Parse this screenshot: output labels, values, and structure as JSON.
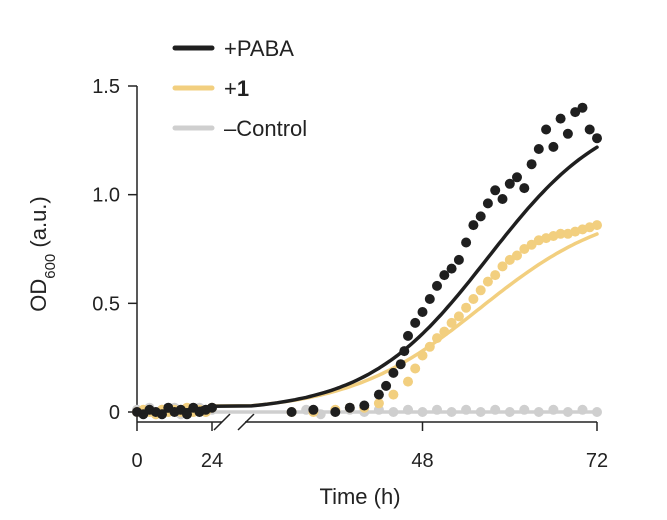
{
  "chart_data": {
    "type": "scatter",
    "xlabel": "Time (h)",
    "ylabel_main": "OD",
    "ylabel_sub": "600",
    "ylabel_tail": " (a.u.)",
    "xticks": [
      "0",
      "24",
      "48",
      "72"
    ],
    "yticks": [
      "0",
      "0.5",
      "1.0",
      "1.5"
    ],
    "xlim": [
      0,
      72
    ],
    "ylim": [
      0,
      1.5
    ],
    "x_axis_break": true,
    "grid": false,
    "legend_position": "top-left",
    "legend": [
      {
        "label_prefix": "+",
        "label_main": "PABA",
        "bold": false
      },
      {
        "label_prefix": "+",
        "label_main": "1",
        "bold": true
      },
      {
        "label_prefix": "",
        "label_main": "–Control",
        "bold": false
      }
    ],
    "colors": {
      "paba": "#1f1f1f",
      "compound1": "#f2cf7f",
      "control": "#cfcfcf"
    },
    "series": [
      {
        "name": "+PABA",
        "color": "#1f1f1f",
        "fit": {
          "model": "logistic",
          "K": 1.42,
          "r": 0.12,
          "t0": 57
        },
        "points": [
          [
            0,
            0.0
          ],
          [
            2,
            -0.01
          ],
          [
            4,
            0.01
          ],
          [
            6,
            0.0
          ],
          [
            8,
            -0.01
          ],
          [
            10,
            0.02
          ],
          [
            12,
            0.0
          ],
          [
            14,
            0.01
          ],
          [
            16,
            -0.01
          ],
          [
            18,
            0.02
          ],
          [
            20,
            0.0
          ],
          [
            22,
            0.01
          ],
          [
            24,
            0.02
          ],
          [
            30,
            0.0
          ],
          [
            33,
            0.01
          ],
          [
            36,
            0.0
          ],
          [
            38,
            0.02
          ],
          [
            40,
            0.03
          ],
          [
            42,
            0.08
          ],
          [
            43,
            0.12
          ],
          [
            44,
            0.18
          ],
          [
            45,
            0.22
          ],
          [
            45.5,
            0.28
          ],
          [
            46,
            0.35
          ],
          [
            47,
            0.41
          ],
          [
            48,
            0.46
          ],
          [
            49,
            0.52
          ],
          [
            50,
            0.58
          ],
          [
            51,
            0.63
          ],
          [
            52,
            0.66
          ],
          [
            53,
            0.7
          ],
          [
            54,
            0.78
          ],
          [
            55,
            0.86
          ],
          [
            56,
            0.9
          ],
          [
            57,
            0.96
          ],
          [
            58,
            1.02
          ],
          [
            59,
            0.98
          ],
          [
            60,
            1.05
          ],
          [
            61,
            1.08
          ],
          [
            62,
            1.03
          ],
          [
            63,
            1.14
          ],
          [
            64,
            1.21
          ],
          [
            65,
            1.3
          ],
          [
            66,
            1.22
          ],
          [
            67,
            1.35
          ],
          [
            68,
            1.28
          ],
          [
            69,
            1.38
          ],
          [
            70,
            1.4
          ],
          [
            71,
            1.3
          ],
          [
            72,
            1.26
          ]
        ]
      },
      {
        "name": "+1",
        "color": "#f2cf7f",
        "fit": {
          "model": "logistic",
          "K": 0.96,
          "r": 0.11,
          "t0": 56
        },
        "points": [
          [
            0,
            0.0
          ],
          [
            2,
            0.01
          ],
          [
            4,
            0.0
          ],
          [
            6,
            -0.01
          ],
          [
            8,
            0.01
          ],
          [
            10,
            0.0
          ],
          [
            12,
            0.01
          ],
          [
            14,
            0.0
          ],
          [
            16,
            0.02
          ],
          [
            18,
            0.0
          ],
          [
            20,
            0.01
          ],
          [
            22,
            0.0
          ],
          [
            24,
            0.02
          ],
          [
            30,
            0.0
          ],
          [
            33,
            0.0
          ],
          [
            36,
            0.01
          ],
          [
            38,
            0.02
          ],
          [
            40,
            0.02
          ],
          [
            42,
            0.04
          ],
          [
            44,
            0.08
          ],
          [
            46,
            0.14
          ],
          [
            47,
            0.2
          ],
          [
            48,
            0.26
          ],
          [
            49,
            0.3
          ],
          [
            50,
            0.34
          ],
          [
            51,
            0.37
          ],
          [
            52,
            0.41
          ],
          [
            53,
            0.44
          ],
          [
            54,
            0.48
          ],
          [
            55,
            0.52
          ],
          [
            56,
            0.56
          ],
          [
            57,
            0.6
          ],
          [
            58,
            0.63
          ],
          [
            59,
            0.67
          ],
          [
            60,
            0.7
          ],
          [
            61,
            0.72
          ],
          [
            62,
            0.75
          ],
          [
            63,
            0.77
          ],
          [
            64,
            0.79
          ],
          [
            65,
            0.8
          ],
          [
            66,
            0.81
          ],
          [
            67,
            0.82
          ],
          [
            68,
            0.82
          ],
          [
            69,
            0.83
          ],
          [
            70,
            0.84
          ],
          [
            71,
            0.85
          ],
          [
            72,
            0.86
          ]
        ]
      },
      {
        "name": "–Control",
        "color": "#cfcfcf",
        "fit": {
          "model": "constant",
          "value": 0.0
        },
        "points": [
          [
            0,
            0.01
          ],
          [
            2,
            0.0
          ],
          [
            4,
            0.02
          ],
          [
            6,
            -0.01
          ],
          [
            8,
            0.01
          ],
          [
            10,
            0.0
          ],
          [
            12,
            0.02
          ],
          [
            14,
            -0.01
          ],
          [
            16,
            0.01
          ],
          [
            18,
            0.0
          ],
          [
            20,
            0.02
          ],
          [
            22,
            0.0
          ],
          [
            24,
            0.01
          ],
          [
            30,
            0.0
          ],
          [
            32,
            0.01
          ],
          [
            34,
            -0.01
          ],
          [
            36,
            0.0
          ],
          [
            38,
            0.01
          ],
          [
            40,
            0.0
          ],
          [
            42,
            0.01
          ],
          [
            44,
            0.0
          ],
          [
            46,
            0.01
          ],
          [
            48,
            0.0
          ],
          [
            50,
            0.01
          ],
          [
            52,
            0.0
          ],
          [
            54,
            0.01
          ],
          [
            56,
            0.0
          ],
          [
            58,
            0.01
          ],
          [
            60,
            0.0
          ],
          [
            62,
            0.01
          ],
          [
            64,
            0.0
          ],
          [
            66,
            0.01
          ],
          [
            68,
            0.0
          ],
          [
            70,
            0.01
          ],
          [
            72,
            0.0
          ]
        ]
      }
    ]
  }
}
